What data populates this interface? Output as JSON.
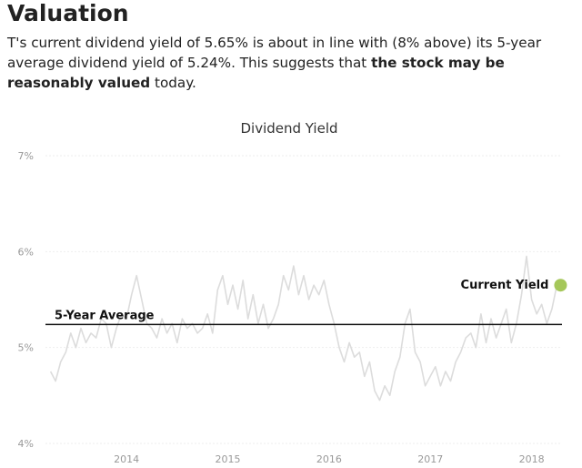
{
  "heading": "Valuation",
  "summary": {
    "text_before": "T's current dividend yield of 5.65% is about in line with (8% above) its 5-year average dividend yield of 5.24%. This suggests that ",
    "text_bold": "the stock may be reasonably valued",
    "text_after": " today."
  },
  "colors": {
    "history_line": "#dcdcdc",
    "average_line": "#111111",
    "current_dot": "#a5c75a",
    "grid": "#eeeeee"
  },
  "chart_data": {
    "type": "line",
    "title": "Dividend Yield",
    "xlabel": "",
    "ylabel": "",
    "y_unit": "%",
    "ylim": [
      4,
      7
    ],
    "yticks": [
      "7%",
      "6%",
      "5%",
      "4%"
    ],
    "xlim": [
      2013.2,
      2018.3
    ],
    "xticks": [
      "2014",
      "2015",
      "2016",
      "2017",
      "2018"
    ],
    "grid": true,
    "five_year_average": {
      "label": "5-Year Average",
      "value": 5.24
    },
    "current": {
      "label": "Current Yield",
      "value": 5.65,
      "x": 2018.25
    },
    "series": [
      {
        "x": [
          2013.25,
          2013.3,
          2013.35,
          2013.4,
          2013.45,
          2013.5,
          2013.55,
          2013.6,
          2013.65,
          2013.7,
          2013.75,
          2013.8,
          2013.85,
          2013.9,
          2013.95,
          2014.0,
          2014.05,
          2014.1,
          2014.15,
          2014.2,
          2014.25,
          2014.3,
          2014.35,
          2014.4,
          2014.45,
          2014.5,
          2014.55,
          2014.6,
          2014.65,
          2014.7,
          2014.75,
          2014.8,
          2014.85,
          2014.9,
          2014.95,
          2015.0,
          2015.05,
          2015.1,
          2015.15,
          2015.2,
          2015.25,
          2015.3,
          2015.35,
          2015.4,
          2015.45,
          2015.5,
          2015.55,
          2015.6,
          2015.65,
          2015.7,
          2015.75,
          2015.8,
          2015.85,
          2015.9,
          2015.95,
          2016.0,
          2016.05,
          2016.1,
          2016.15,
          2016.2,
          2016.25,
          2016.3,
          2016.35,
          2016.4,
          2016.45,
          2016.5,
          2016.55,
          2016.6,
          2016.65,
          2016.7,
          2016.75,
          2016.8,
          2016.85,
          2016.9,
          2016.95,
          2017.0,
          2017.05,
          2017.1,
          2017.15,
          2017.2,
          2017.25,
          2017.3,
          2017.35,
          2017.4,
          2017.45,
          2017.5,
          2017.55,
          2017.6,
          2017.65,
          2017.7,
          2017.75,
          2017.8,
          2017.85,
          2017.9,
          2017.95,
          2018.0,
          2018.05,
          2018.1,
          2018.15,
          2018.2,
          2018.25
        ],
        "values": [
          4.75,
          4.65,
          4.85,
          4.95,
          5.15,
          5.0,
          5.2,
          5.05,
          5.15,
          5.1,
          5.3,
          5.25,
          5.0,
          5.2,
          5.35,
          5.3,
          5.55,
          5.75,
          5.5,
          5.25,
          5.2,
          5.1,
          5.3,
          5.15,
          5.25,
          5.05,
          5.3,
          5.2,
          5.25,
          5.15,
          5.2,
          5.35,
          5.15,
          5.6,
          5.75,
          5.45,
          5.65,
          5.4,
          5.7,
          5.3,
          5.55,
          5.25,
          5.45,
          5.2,
          5.3,
          5.45,
          5.75,
          5.6,
          5.85,
          5.55,
          5.75,
          5.5,
          5.65,
          5.55,
          5.7,
          5.45,
          5.25,
          5.0,
          4.85,
          5.05,
          4.9,
          4.95,
          4.7,
          4.85,
          4.55,
          4.45,
          4.6,
          4.5,
          4.75,
          4.9,
          5.25,
          5.4,
          4.95,
          4.85,
          4.6,
          4.7,
          4.8,
          4.6,
          4.75,
          4.65,
          4.85,
          4.95,
          5.1,
          5.15,
          5.0,
          5.35,
          5.05,
          5.3,
          5.1,
          5.25,
          5.4,
          5.05,
          5.25,
          5.55,
          5.95,
          5.5,
          5.35,
          5.45,
          5.25,
          5.4,
          5.65
        ]
      }
    ]
  }
}
